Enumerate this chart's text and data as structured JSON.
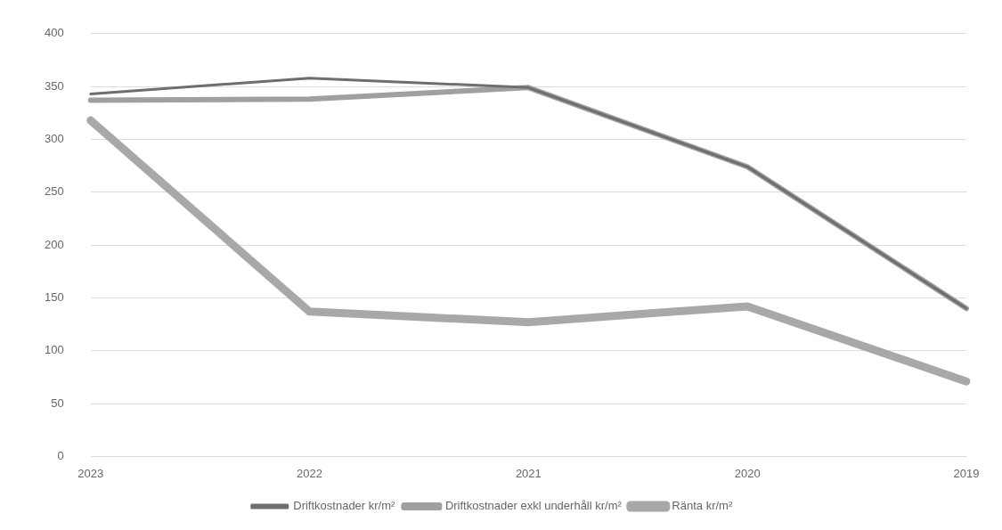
{
  "chart_data": {
    "type": "line",
    "categories": [
      "2023",
      "2022",
      "2021",
      "2020",
      "2019"
    ],
    "series": [
      {
        "name": "Driftkostnader kr/m²",
        "color": "#6e6e6e",
        "values": [
          343,
          358,
          349,
          274,
          140
        ]
      },
      {
        "name": "Driftkostnader exkl underhåll kr/m²",
        "color": "#a0a0a0",
        "values": [
          337,
          338,
          349,
          274,
          140
        ]
      },
      {
        "name": "Ränta kr/m²",
        "color": "#a8a8a8",
        "values": [
          318,
          137,
          127,
          142,
          71
        ]
      }
    ],
    "ylim": [
      0,
      400
    ],
    "yticks": [
      0,
      50,
      100,
      150,
      200,
      250,
      300,
      350,
      400
    ],
    "grid": "y",
    "legend": "bottom",
    "marker": "none",
    "line_style": "solid"
  }
}
